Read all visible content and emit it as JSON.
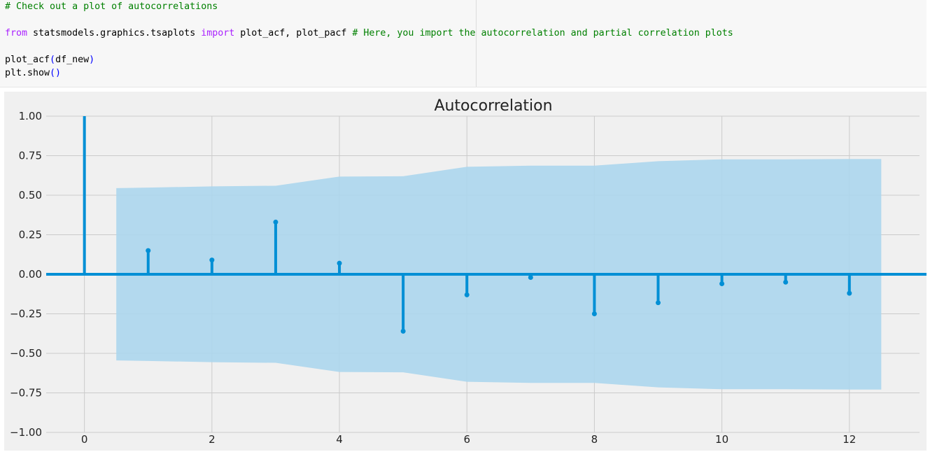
{
  "code": {
    "lines": [
      [
        {
          "t": "# Check out a plot of autocorrelations",
          "c": "cm"
        }
      ],
      [],
      [
        {
          "t": "from",
          "c": "kw"
        },
        {
          "t": " statsmodels.graphics.tsaplots ",
          "c": ""
        },
        {
          "t": "import",
          "c": "kw"
        },
        {
          "t": " plot_acf, plot_pacf ",
          "c": ""
        },
        {
          "t": "# Here, you import the autocorrelation and partial correlation plots",
          "c": "cm"
        }
      ],
      [],
      [
        {
          "t": "plot_acf",
          "c": ""
        },
        {
          "t": "(",
          "c": "par"
        },
        {
          "t": "df_new",
          "c": ""
        },
        {
          "t": ")",
          "c": "par"
        }
      ],
      [
        {
          "t": "plt.show",
          "c": ""
        },
        {
          "t": "()",
          "c": "par"
        }
      ]
    ]
  },
  "chart_data": {
    "type": "stem",
    "title": "Autocorrelation",
    "xlabel": "",
    "ylabel": "",
    "xlim": [
      -0.6,
      13.1
    ],
    "ylim": [
      -1.0,
      1.0
    ],
    "xticks": [
      0,
      2,
      4,
      6,
      8,
      10,
      12
    ],
    "xtick_labels": [
      "0",
      "2",
      "4",
      "6",
      "8",
      "10",
      "12"
    ],
    "yticks": [
      1.0,
      0.75,
      0.5,
      0.25,
      0.0,
      -0.25,
      -0.5,
      -0.75,
      -1.0
    ],
    "ytick_labels": [
      "1.00",
      "0.75",
      "0.50",
      "0.25",
      "0.00",
      "−0.25",
      "−0.50",
      "−0.75",
      "−1.00"
    ],
    "grid": true,
    "lags": [
      0,
      1,
      2,
      3,
      4,
      5,
      6,
      7,
      8,
      9,
      10,
      11,
      12
    ],
    "values": [
      1.0,
      0.15,
      0.09,
      0.33,
      0.07,
      -0.36,
      -0.13,
      -0.02,
      -0.25,
      -0.18,
      -0.06,
      -0.05,
      -0.12
    ],
    "confidence_band": {
      "x": [
        0.5,
        1,
        2,
        3,
        4,
        5,
        6,
        7,
        8,
        9,
        10,
        11,
        12,
        12.5
      ],
      "upper": [
        0.545,
        0.548,
        0.556,
        0.56,
        0.618,
        0.62,
        0.68,
        0.687,
        0.687,
        0.715,
        0.727,
        0.727,
        0.729,
        0.729
      ]
    },
    "colors": {
      "stem": "#008fd5",
      "band": "#acd6ed",
      "background": "#f0f0f0",
      "grid": "#cbcbcb",
      "text": "#222222"
    }
  }
}
